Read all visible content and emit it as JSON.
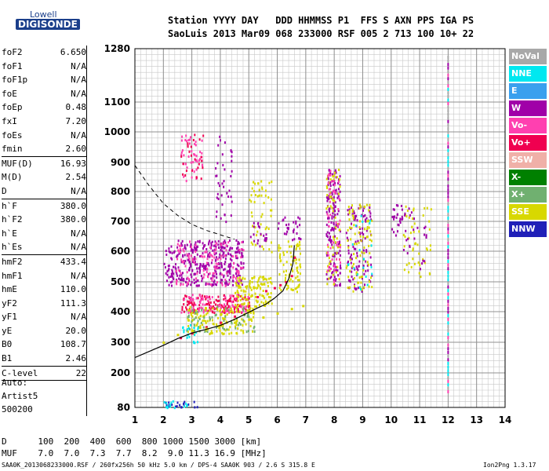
{
  "logo": {
    "line1": "Lowell",
    "line2": "DIGISONDE"
  },
  "header": {
    "row1": "Station YYYY DAY   DDD HHMMSS P1  FFS S AXN PPS IGA PS",
    "row2": "SaoLuis 2013 Mar09 068 233000 RSF 005 2 713 100 10+ 22"
  },
  "params": [
    {
      "name": "foF2",
      "value": "6.650"
    },
    {
      "name": "foF1",
      "value": "N/A"
    },
    {
      "name": "foF1p",
      "value": "N/A"
    },
    {
      "name": "foE",
      "value": "N/A"
    },
    {
      "name": "foEp",
      "value": "0.48"
    },
    {
      "name": "fxI",
      "value": "7.20"
    },
    {
      "name": "foEs",
      "value": "N/A"
    },
    {
      "name": "fmin",
      "value": "2.60"
    },
    {
      "sep": true
    },
    {
      "name": "MUF(D)",
      "value": "16.93"
    },
    {
      "name": "M(D)",
      "value": "2.54"
    },
    {
      "name": "D",
      "value": "N/A"
    },
    {
      "sep": true
    },
    {
      "name": "h`F",
      "value": "380.0"
    },
    {
      "name": "h`F2",
      "value": "380.0"
    },
    {
      "name": "h`E",
      "value": "N/A"
    },
    {
      "name": "h`Es",
      "value": "N/A"
    },
    {
      "sep": true
    },
    {
      "name": "hmF2",
      "value": "433.4"
    },
    {
      "name": "hmF1",
      "value": "N/A"
    },
    {
      "name": "hmE",
      "value": "110.0"
    },
    {
      "name": "yF2",
      "value": "111.3"
    },
    {
      "name": "yF1",
      "value": "N/A"
    },
    {
      "name": "yE",
      "value": "20.0"
    },
    {
      "name": "B0",
      "value": "108.7"
    },
    {
      "name": "B1",
      "value": "2.46"
    },
    {
      "sep": true
    },
    {
      "name": "C-level",
      "value": "22"
    },
    {
      "sep": true
    }
  ],
  "autoscale": {
    "line1": "Auto:",
    "line2": "Artist5",
    "line3": "500200"
  },
  "muf_table": {
    "d_label": "D",
    "d_values": [
      "100",
      "200",
      "400",
      "600",
      "800",
      "1000",
      "1500",
      "3000"
    ],
    "d_unit": "[km]",
    "m_label": "MUF",
    "m_values": [
      "7.0",
      "7.0",
      "7.3",
      "7.7",
      "8.2",
      "9.0",
      "11.3",
      "16.9"
    ],
    "m_unit": "[MHz]"
  },
  "footer": {
    "left": "SAA0K_2013068233000.RSF / 260fx256h 50 kHz 5.0 km / DPS-4 SAA0K 903 / 2.6 S 315.8 E",
    "right": "Ion2Png 1.3.17"
  },
  "legend": [
    {
      "label": "NoVal",
      "color": "#a8a8a8"
    },
    {
      "label": "NNE",
      "color": "#00e8f0"
    },
    {
      "label": "E",
      "color": "#3aa0ee"
    },
    {
      "label": "W",
      "color": "#a000a8"
    },
    {
      "label": "Vo-",
      "color": "#ff40b0"
    },
    {
      "label": "Vo+",
      "color": "#f00050"
    },
    {
      "label": "SSW",
      "color": "#f0b0a8"
    },
    {
      "label": "X-",
      "color": "#008000"
    },
    {
      "label": "X+",
      "color": "#70b070"
    },
    {
      "label": "SSE",
      "color": "#d8d800"
    },
    {
      "label": "NNW",
      "color": "#2020b8"
    }
  ],
  "chart_data": {
    "type": "scatter",
    "title": "",
    "xlabel": "",
    "ylabel": "",
    "x_ticks": [
      1,
      2,
      3,
      4,
      5,
      6,
      7,
      8,
      9,
      10,
      11,
      12,
      13,
      14
    ],
    "y_tick_labels": [
      80,
      200,
      300,
      400,
      500,
      600,
      700,
      800,
      900,
      1000,
      1100,
      1280
    ],
    "xlim": [
      1,
      14
    ],
    "ylim": [
      80,
      1280
    ],
    "grid": true,
    "legend_position": "right",
    "profile_curve": [
      [
        6.6,
        620
      ],
      [
        6.55,
        560
      ],
      [
        6.4,
        510
      ],
      [
        6.2,
        470
      ],
      [
        5.9,
        445
      ],
      [
        5.6,
        425
      ],
      [
        5.3,
        412
      ],
      [
        5.0,
        398
      ],
      [
        4.5,
        375
      ],
      [
        4.0,
        355
      ],
      [
        3.5,
        342
      ],
      [
        3.0,
        330
      ],
      [
        2.5,
        312
      ],
      [
        2.0,
        290
      ],
      [
        1.5,
        270
      ],
      [
        1.0,
        250
      ]
    ],
    "dashed_curve": [
      [
        1.0,
        890
      ],
      [
        1.5,
        820
      ],
      [
        2.0,
        760
      ],
      [
        2.5,
        720
      ],
      [
        3.0,
        690
      ],
      [
        3.5,
        670
      ],
      [
        4.0,
        655
      ],
      [
        4.5,
        640
      ]
    ],
    "trace_o": [
      [
        2.6,
        315
      ],
      [
        3.0,
        330
      ],
      [
        3.5,
        350
      ],
      [
        4.0,
        365
      ],
      [
        4.5,
        385
      ],
      [
        5.0,
        420
      ],
      [
        5.3,
        450
      ],
      [
        5.6,
        470
      ],
      [
        5.9,
        480
      ],
      [
        6.1,
        490
      ],
      [
        6.3,
        500
      ],
      [
        6.5,
        520
      ],
      [
        6.6,
        580
      ]
    ],
    "trace_x": [
      [
        2.0,
        300
      ],
      [
        2.5,
        325
      ],
      [
        3.0,
        338
      ],
      [
        3.5,
        345
      ],
      [
        4.0,
        355
      ],
      [
        4.5,
        365
      ],
      [
        5.0,
        375
      ],
      [
        5.5,
        382
      ],
      [
        6.0,
        395
      ],
      [
        6.5,
        410
      ],
      [
        6.9,
        420
      ]
    ],
    "echo_clusters": [
      {
        "x": [
          2.0,
          2.4
        ],
        "y": [
          490,
          620
        ],
        "color": "#a000a8",
        "n": 40
      },
      {
        "x": [
          2.4,
          4.8
        ],
        "y": [
          490,
          640
        ],
        "color": "#a000a8",
        "n": 320
      },
      {
        "x": [
          2.4,
          4.8
        ],
        "y": [
          490,
          640
        ],
        "color": "#ff40b0",
        "n": 120
      },
      {
        "x": [
          2.6,
          3.4
        ],
        "y": [
          840,
          1000
        ],
        "color": "#ff40b0",
        "n": 45
      },
      {
        "x": [
          2.6,
          3.4
        ],
        "y": [
          840,
          1000
        ],
        "color": "#f00050",
        "n": 25
      },
      {
        "x": [
          3.8,
          4.4
        ],
        "y": [
          700,
          1000
        ],
        "color": "#a000a8",
        "n": 40
      },
      {
        "x": [
          2.6,
          5.0
        ],
        "y": [
          400,
          460
        ],
        "color": "#f00050",
        "n": 140
      },
      {
        "x": [
          2.6,
          5.0
        ],
        "y": [
          400,
          460
        ],
        "color": "#ff40b0",
        "n": 80
      },
      {
        "x": [
          2.8,
          5.2
        ],
        "y": [
          330,
          420
        ],
        "color": "#d8d800",
        "n": 140
      },
      {
        "x": [
          2.8,
          5.2
        ],
        "y": [
          330,
          420
        ],
        "color": "#70b070",
        "n": 60
      },
      {
        "x": [
          2.6,
          3.2
        ],
        "y": [
          300,
          360
        ],
        "color": "#00e8f0",
        "n": 20
      },
      {
        "x": [
          4.5,
          5.8
        ],
        "y": [
          420,
          520
        ],
        "color": "#d8d800",
        "n": 120
      },
      {
        "x": [
          5.0,
          5.8
        ],
        "y": [
          600,
          840
        ],
        "color": "#d8d800",
        "n": 50
      },
      {
        "x": [
          5.0,
          5.6
        ],
        "y": [
          620,
          700
        ],
        "color": "#a000a8",
        "n": 20
      },
      {
        "x": [
          6.0,
          6.8
        ],
        "y": [
          460,
          640
        ],
        "color": "#d8d800",
        "n": 80
      },
      {
        "x": [
          6.0,
          6.8
        ],
        "y": [
          640,
          720
        ],
        "color": "#a000a8",
        "n": 30
      },
      {
        "x": [
          7.7,
          8.2
        ],
        "y": [
          490,
          880
        ],
        "color": "#a000a8",
        "n": 150
      },
      {
        "x": [
          7.7,
          8.2
        ],
        "y": [
          490,
          880
        ],
        "color": "#d8d800",
        "n": 60
      },
      {
        "x": [
          7.7,
          8.2
        ],
        "y": [
          490,
          880
        ],
        "color": "#ff40b0",
        "n": 50
      },
      {
        "x": [
          8.4,
          9.3
        ],
        "y": [
          470,
          760
        ],
        "color": "#a000a8",
        "n": 110
      },
      {
        "x": [
          8.4,
          9.3
        ],
        "y": [
          470,
          760
        ],
        "color": "#d8d800",
        "n": 90
      },
      {
        "x": [
          8.4,
          9.3
        ],
        "y": [
          470,
          760
        ],
        "color": "#00e8f0",
        "n": 20
      },
      {
        "x": [
          10.0,
          10.4
        ],
        "y": [
          640,
          760
        ],
        "color": "#a000a8",
        "n": 25
      },
      {
        "x": [
          10.4,
          11.4
        ],
        "y": [
          520,
          760
        ],
        "color": "#d8d800",
        "n": 50
      },
      {
        "x": [
          10.4,
          11.4
        ],
        "y": [
          520,
          760
        ],
        "color": "#a000a8",
        "n": 25
      },
      {
        "x": [
          2.0,
          3.2
        ],
        "y": [
          82,
          105
        ],
        "color": "#2020b8",
        "n": 20
      },
      {
        "x": [
          2.0,
          3.2
        ],
        "y": [
          82,
          105
        ],
        "color": "#00e8f0",
        "n": 15
      }
    ],
    "vertical_line": {
      "x": 12.0,
      "y": [
        140,
        1260
      ]
    }
  }
}
